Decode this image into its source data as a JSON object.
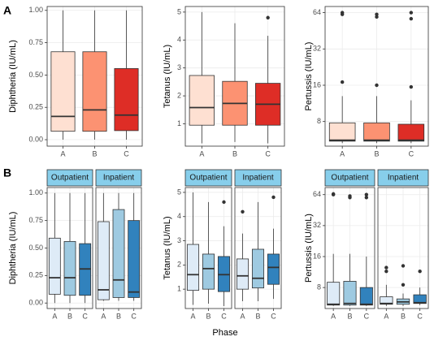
{
  "xlabel": "Phase",
  "chart_data": [
    {
      "type": "box",
      "panel_label": "A",
      "ylabel": "Diphtheria (IU/mL)",
      "categories": [
        "A",
        "B",
        "C"
      ],
      "colors": [
        "#fee0d2",
        "#fc9272",
        "#de2d26"
      ],
      "ylim": [
        -0.05,
        1.03
      ],
      "yticks": [
        {
          "value": 0,
          "label": "0.00"
        },
        {
          "value": 0.25,
          "label": "0.25"
        },
        {
          "value": 0.5,
          "label": "0.50"
        },
        {
          "value": 0.75,
          "label": "0.75"
        },
        {
          "value": 1,
          "label": "1.00"
        }
      ],
      "log_scale": false,
      "grid": true,
      "min": [
        0.0,
        0.0,
        0.0
      ],
      "q1": [
        0.065,
        0.065,
        0.07
      ],
      "median": [
        0.18,
        0.23,
        0.19
      ],
      "q3": [
        0.68,
        0.68,
        0.55
      ],
      "max": [
        1.0,
        1.0,
        1.0
      ],
      "outliers": [
        [],
        [],
        []
      ]
    },
    {
      "type": "box",
      "ylabel": "Tetanus (IU/mL)",
      "categories": [
        "A",
        "B",
        "C"
      ],
      "colors": [
        "#fee0d2",
        "#fc9272",
        "#de2d26"
      ],
      "ylim": [
        0.2,
        5.2
      ],
      "yticks": [
        1,
        2,
        3,
        4,
        5
      ],
      "log_scale": false,
      "grid": true,
      "min": [
        0.3,
        0.35,
        0.3
      ],
      "q1": [
        0.95,
        0.95,
        0.95
      ],
      "median": [
        1.58,
        1.73,
        1.7
      ],
      "q3": [
        2.73,
        2.52,
        2.45
      ],
      "max": [
        5.0,
        4.6,
        4.15
      ],
      "outliers": [
        [],
        [],
        [
          4.8
        ]
      ]
    },
    {
      "type": "box",
      "ylabel": "Pertussis (IU/mL)",
      "categories": [
        "A",
        "B",
        "C"
      ],
      "colors": [
        "#fee0d2",
        "#fc9272",
        "#de2d26"
      ],
      "ylim": [
        5,
        72
      ],
      "yticks": [
        8,
        16,
        32,
        64
      ],
      "log_scale": true,
      "grid": true,
      "min": [
        5.3,
        5.3,
        5.3
      ],
      "q1": [
        5.5,
        5.5,
        5.5
      ],
      "median": [
        5.6,
        5.6,
        5.6
      ],
      "q3": [
        7.8,
        7.8,
        7.6
      ],
      "max": [
        13,
        13,
        12
      ],
      "outliers": [
        [
          17,
          62,
          64
        ],
        [
          16,
          59,
          62
        ],
        [
          15.5,
          57,
          64
        ]
      ]
    },
    {
      "type": "box",
      "panel_label": "B",
      "ylabel": "Diphtheria (IU/mL)",
      "facet": "Outpatient",
      "categories": [
        "A",
        "B",
        "C"
      ],
      "colors": [
        "#deebf7",
        "#9ecae1",
        "#3182bd"
      ],
      "ylim": [
        -0.05,
        1.05
      ],
      "yticks": [
        {
          "value": 0,
          "label": "0.00"
        },
        {
          "value": 0.25,
          "label": "0.25"
        },
        {
          "value": 0.5,
          "label": "0.50"
        },
        {
          "value": 0.75,
          "label": "0.75"
        },
        {
          "value": 1,
          "label": "1.00"
        }
      ],
      "log_scale": false,
      "grid": true,
      "min": [
        0.0,
        0.0,
        0.0
      ],
      "q1": [
        0.08,
        0.07,
        0.07
      ],
      "median": [
        0.23,
        0.23,
        0.31
      ],
      "q3": [
        0.59,
        0.56,
        0.54
      ],
      "max": [
        1.0,
        1.0,
        1.0
      ],
      "outliers": [
        [],
        [],
        []
      ]
    },
    {
      "type": "box",
      "facet": "Inpatient",
      "categories": [
        "A",
        "B",
        "C"
      ],
      "colors": [
        "#deebf7",
        "#9ecae1",
        "#3182bd"
      ],
      "ylim": [
        -0.05,
        1.05
      ],
      "yticks": [
        0,
        0.25,
        0.5,
        0.75,
        1
      ],
      "log_scale": false,
      "grid": true,
      "min": [
        0.02,
        0.02,
        0.02
      ],
      "q1": [
        0.03,
        0.05,
        0.05
      ],
      "median": [
        0.12,
        0.21,
        0.1
      ],
      "q3": [
        0.74,
        0.85,
        0.75
      ],
      "max": [
        1.0,
        1.0,
        1.0
      ],
      "outliers": [
        [],
        [],
        []
      ]
    },
    {
      "type": "box",
      "ylabel": "Tetanus (IU/mL)",
      "facet": "Outpatient",
      "categories": [
        "A",
        "B",
        "C"
      ],
      "colors": [
        "#deebf7",
        "#9ecae1",
        "#3182bd"
      ],
      "ylim": [
        0.2,
        5.2
      ],
      "yticks": [
        1,
        2,
        3,
        4,
        5
      ],
      "log_scale": false,
      "grid": true,
      "min": [
        0.35,
        0.4,
        0.3
      ],
      "q1": [
        0.95,
        1.0,
        0.9
      ],
      "median": [
        1.6,
        1.85,
        1.6
      ],
      "q3": [
        2.85,
        2.45,
        2.35
      ],
      "max": [
        5.0,
        4.6,
        3.6
      ],
      "outliers": [
        [],
        [],
        [
          4.6
        ]
      ]
    },
    {
      "type": "box",
      "facet": "Inpatient",
      "categories": [
        "A",
        "B",
        "C"
      ],
      "colors": [
        "#deebf7",
        "#9ecae1",
        "#3182bd"
      ],
      "ylim": [
        0.2,
        5.2
      ],
      "yticks": [
        1,
        2,
        3,
        4,
        5
      ],
      "log_scale": false,
      "grid": true,
      "min": [
        0.5,
        0.5,
        0.6
      ],
      "q1": [
        1.0,
        1.05,
        1.2
      ],
      "median": [
        1.55,
        1.45,
        1.9
      ],
      "q3": [
        2.25,
        2.65,
        2.45
      ],
      "max": [
        3.3,
        4.6,
        3.5
      ],
      "outliers": [
        [
          4.2
        ],
        [],
        [
          4.8
        ]
      ]
    },
    {
      "type": "box",
      "ylabel": "Pertussis (IU/mL)",
      "facet": "Outpatient",
      "categories": [
        "A",
        "B",
        "C"
      ],
      "colors": [
        "#deebf7",
        "#9ecae1",
        "#3182bd"
      ],
      "ylim": [
        5,
        75
      ],
      "yticks": [
        8,
        16,
        32,
        64
      ],
      "log_scale": true,
      "grid": true,
      "min": [
        5.3,
        5.3,
        5.3
      ],
      "q1": [
        5.4,
        5.4,
        5.4
      ],
      "median": [
        5.5,
        5.6,
        5.5
      ],
      "q3": [
        9,
        9.2,
        8
      ],
      "max": [
        17,
        17,
        16
      ],
      "outliers": [
        [
          64,
          65
        ],
        [
          60,
          62
        ],
        [
          60,
          64
        ]
      ]
    },
    {
      "type": "box",
      "facet": "Inpatient",
      "categories": [
        "A",
        "B",
        "C"
      ],
      "colors": [
        "#deebf7",
        "#9ecae1",
        "#3182bd"
      ],
      "ylim": [
        5,
        75
      ],
      "yticks": [
        8,
        16,
        32,
        64
      ],
      "log_scale": true,
      "grid": true,
      "min": [
        5.3,
        5.3,
        5.4
      ],
      "q1": [
        5.5,
        5.5,
        5.6
      ],
      "median": [
        5.6,
        5.8,
        5.7
      ],
      "q3": [
        6.5,
        6.2,
        6.8
      ],
      "max": [
        8.5,
        7,
        8
      ],
      "outliers": [
        [
          11.5,
          12.5
        ],
        [
          8.5,
          13
        ],
        [
          11.5
        ]
      ]
    }
  ]
}
